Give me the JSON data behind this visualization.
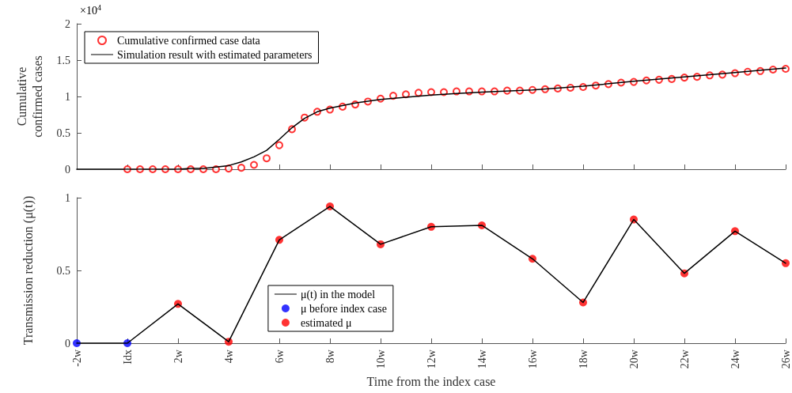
{
  "chart_data": [
    {
      "type": "line",
      "ylabel": "Cumulative\nconfirmed cases",
      "annotations": [
        "×10$^{4}$"
      ],
      "xlim": [
        -2,
        26
      ],
      "xticks": [
        {
          "value": -2,
          "label": null
        },
        {
          "value": 0,
          "label": null
        },
        {
          "value": 2,
          "label": null
        },
        {
          "value": 4,
          "label": null
        },
        {
          "value": 6,
          "label": null
        },
        {
          "value": 8,
          "label": null
        },
        {
          "value": 10,
          "label": null
        },
        {
          "value": 12,
          "label": null
        },
        {
          "value": 14,
          "label": null
        },
        {
          "value": 16,
          "label": null
        },
        {
          "value": 18,
          "label": null
        },
        {
          "value": 20,
          "label": null
        },
        {
          "value": 22,
          "label": null
        },
        {
          "value": 24,
          "label": null
        },
        {
          "value": 26,
          "label": null
        }
      ],
      "ylim": [
        0,
        2
      ],
      "yticks": [
        0,
        0.5,
        1,
        1.5,
        2
      ],
      "tick_labels": "y",
      "legend": "top left",
      "grid": false,
      "series": [
        {
          "name": "Cumulative confirmed case data",
          "type": "scatter",
          "marker": "circle",
          "color": "#ff0000",
          "x": [
            0,
            0.5,
            1,
            1.5,
            2,
            2.5,
            3,
            3.5,
            4,
            4.5,
            5,
            5.5,
            6,
            6.5,
            7,
            7.5,
            8,
            8.5,
            9,
            9.5,
            10,
            10.5,
            11,
            11.5,
            12,
            12.5,
            13,
            13.5,
            14,
            14.5,
            15,
            15.5,
            16,
            16.5,
            17,
            17.5,
            18,
            18.5,
            19,
            19.5,
            20,
            20.5,
            21,
            21.5,
            22,
            22.5,
            23,
            23.5,
            24,
            24.5,
            25,
            25.5,
            26
          ],
          "values": [
            0,
            0,
            0,
            0,
            0,
            0,
            0,
            0,
            0.01,
            0.02,
            0.06,
            0.15,
            0.33,
            0.55,
            0.71,
            0.79,
            0.82,
            0.86,
            0.89,
            0.93,
            0.97,
            1.01,
            1.03,
            1.05,
            1.06,
            1.06,
            1.07,
            1.07,
            1.07,
            1.07,
            1.08,
            1.08,
            1.09,
            1.1,
            1.11,
            1.12,
            1.13,
            1.15,
            1.17,
            1.19,
            1.2,
            1.22,
            1.23,
            1.24,
            1.26,
            1.27,
            1.29,
            1.3,
            1.32,
            1.34,
            1.35,
            1.37,
            1.38
          ]
        },
        {
          "name": "Simulation result with estimated parameters",
          "marker": "none",
          "color": "#000000",
          "x": [
            -2,
            0,
            2,
            2.5,
            3,
            3.5,
            4,
            4.5,
            5,
            5.5,
            6,
            6.5,
            7,
            7.5,
            8,
            9,
            10,
            11,
            12,
            13,
            14,
            16,
            18,
            20,
            22,
            24,
            26
          ],
          "values": [
            0,
            0,
            0,
            0.01,
            0.01,
            0.03,
            0.05,
            0.1,
            0.17,
            0.26,
            0.41,
            0.57,
            0.7,
            0.79,
            0.84,
            0.91,
            0.96,
            0.99,
            1.02,
            1.04,
            1.06,
            1.09,
            1.14,
            1.21,
            1.27,
            1.33,
            1.39
          ]
        }
      ]
    },
    {
      "type": "line",
      "xlabel": "Time from the index case",
      "ylabel": "Transmission reduction (μ(t))",
      "xlim": [
        -2,
        26
      ],
      "xticks": [
        {
          "value": -2,
          "label": "-2w"
        },
        {
          "value": 0,
          "label": "Idx"
        },
        {
          "value": 2,
          "label": "2w"
        },
        {
          "value": 4,
          "label": "4w"
        },
        {
          "value": 6,
          "label": "6w"
        },
        {
          "value": 8,
          "label": "8w"
        },
        {
          "value": 10,
          "label": "10w"
        },
        {
          "value": 12,
          "label": "12w"
        },
        {
          "value": 14,
          "label": "14w"
        },
        {
          "value": 16,
          "label": "16w"
        },
        {
          "value": 18,
          "label": "18w"
        },
        {
          "value": 20,
          "label": "20w"
        },
        {
          "value": 22,
          "label": "22w"
        },
        {
          "value": 24,
          "label": "24w"
        },
        {
          "value": 26,
          "label": "26w"
        }
      ],
      "ylim": [
        0,
        1
      ],
      "yticks": [
        0,
        0.5,
        1
      ],
      "legend": "bottom",
      "grid": false,
      "series": [
        {
          "name": "μ(t) in the model",
          "marker": "none",
          "color": "#000000",
          "x": [
            -2,
            0,
            2,
            4,
            6,
            8,
            10,
            12,
            14,
            16,
            18,
            20,
            22,
            24,
            26
          ],
          "values": [
            0,
            0,
            0.27,
            0.01,
            0.71,
            0.94,
            0.68,
            0.8,
            0.81,
            0.58,
            0.28,
            0.85,
            0.48,
            0.77,
            0.55
          ]
        },
        {
          "name": "μ before index case",
          "type": "scatter",
          "marker": "circle",
          "color": "#0000ff",
          "x": [
            -2,
            0
          ],
          "values": [
            0,
            0
          ]
        },
        {
          "name": "estimated μ",
          "type": "scatter",
          "marker": "circle",
          "color": "#ff0000",
          "x": [
            2,
            4,
            6,
            8,
            10,
            12,
            14,
            16,
            18,
            20,
            22,
            24,
            26
          ],
          "values": [
            0.27,
            0.01,
            0.71,
            0.94,
            0.68,
            0.8,
            0.81,
            0.58,
            0.28,
            0.85,
            0.48,
            0.77,
            0.55
          ]
        }
      ]
    }
  ]
}
